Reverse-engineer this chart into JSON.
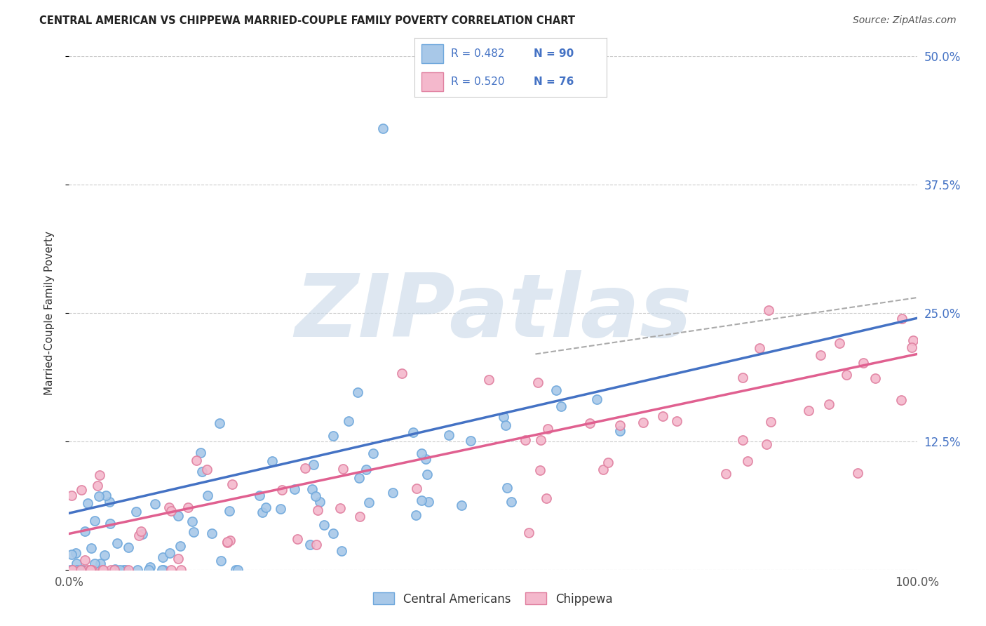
{
  "title": "CENTRAL AMERICAN VS CHIPPEWA MARRIED-COUPLE FAMILY POVERTY CORRELATION CHART",
  "source": "Source: ZipAtlas.com",
  "ylabel": "Married-Couple Family Poverty",
  "xlim": [
    0,
    1
  ],
  "ylim": [
    0,
    0.5
  ],
  "ytick_values": [
    0,
    0.125,
    0.25,
    0.375,
    0.5
  ],
  "ytick_labels": [
    "",
    "12.5%",
    "25.0%",
    "37.5%",
    "50.0%"
  ],
  "blue_scatter_color": "#7bafd4",
  "blue_edge_color": "#6fa8dc",
  "pink_scatter_color": "#f4b8c8",
  "pink_edge_color": "#e06080",
  "blue_line_color": "#4472c4",
  "pink_line_color": "#e06090",
  "dash_line_color": "#aaaaaa",
  "grid_color": "#cccccc",
  "R_blue": 0.482,
  "N_blue": 90,
  "R_pink": 0.52,
  "N_pink": 76,
  "legend_label_blue": "Central Americans",
  "legend_label_pink": "Chippewa",
  "watermark": "ZIPatlas",
  "watermark_color": "#c8d8e8",
  "title_color": "#222222",
  "source_color": "#555555",
  "tick_color": "#4472c4",
  "ylabel_color": "#333333"
}
